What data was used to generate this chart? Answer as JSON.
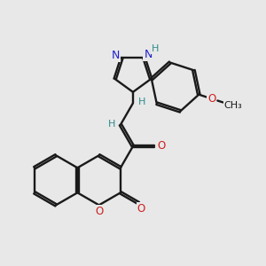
{
  "bg": "#e8e8e8",
  "bc": "#1a1a1a",
  "nc": "#2020cc",
  "oc": "#cc2020",
  "hc": "#2e8b8b",
  "lw": 1.7,
  "dbo": 0.032,
  "figsize": [
    3.0,
    3.0
  ],
  "dpi": 100,
  "xlim": [
    -2.5,
    2.8
  ],
  "ylim": [
    -2.5,
    2.0
  ]
}
